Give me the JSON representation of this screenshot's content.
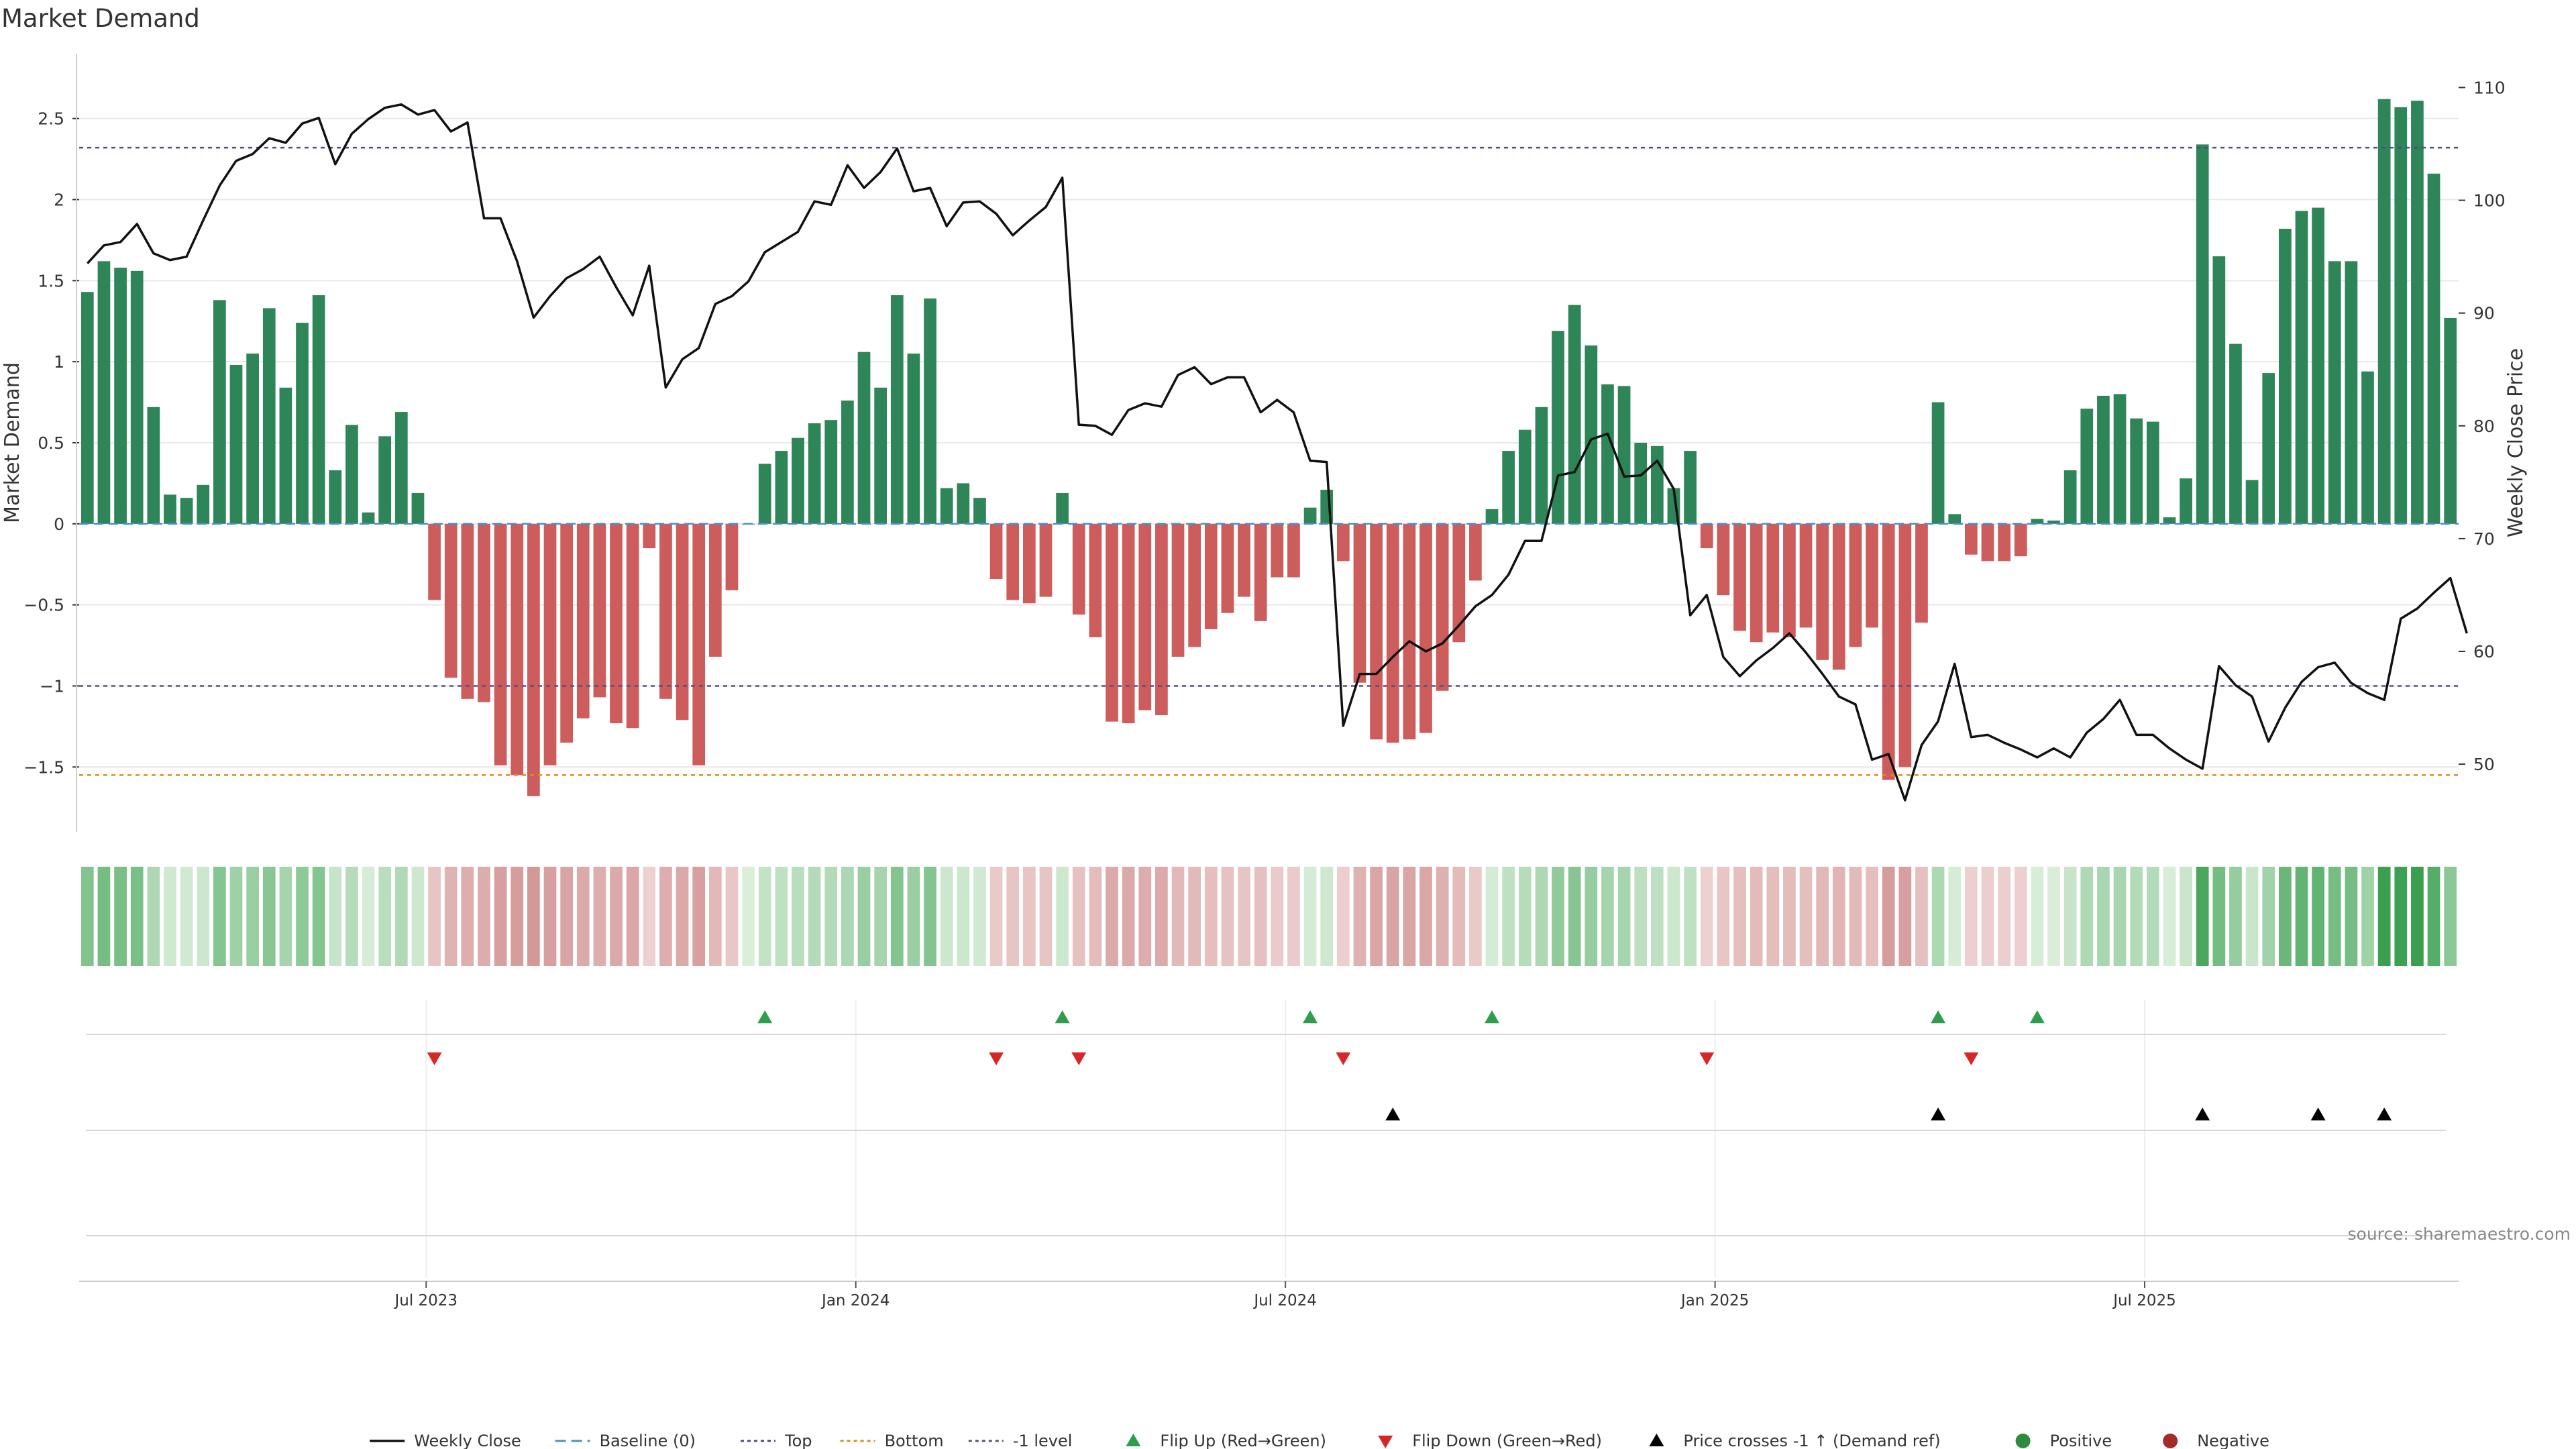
{
  "chart_data": {
    "type": "bar",
    "title": "Market Demand",
    "ylabel": "Market Demand",
    "y2label": "Weekly Close Price",
    "ylim": [
      -1.9,
      2.9
    ],
    "y2lim": [
      44,
      113
    ],
    "yticks": [
      {
        "value": 2.5,
        "label": "2.5"
      },
      {
        "value": 2,
        "label": "2"
      },
      {
        "value": 1.5,
        "label": "1.5"
      },
      {
        "value": 1,
        "label": "1"
      },
      {
        "value": 0.5,
        "label": "0.5"
      },
      {
        "value": 0,
        "label": "0"
      },
      {
        "value": -0.5,
        "label": "−0.5"
      },
      {
        "value": -1,
        "label": "−1"
      },
      {
        "value": -1.5,
        "label": "−1.5"
      }
    ],
    "y2ticks": [
      {
        "value": 110,
        "label": "110"
      },
      {
        "value": 100,
        "label": "100"
      },
      {
        "value": 90,
        "label": "90"
      },
      {
        "value": 80,
        "label": "80"
      },
      {
        "value": 70,
        "label": "70"
      },
      {
        "value": 60,
        "label": "60"
      },
      {
        "value": 50,
        "label": "50"
      }
    ],
    "reference_lines": {
      "top": 2.32,
      "bottom": -1.55,
      "minus_one": -1,
      "baseline": 0
    },
    "x_ticks": [
      {
        "index": 21,
        "label": "Jul 2023"
      },
      {
        "index": 47,
        "label": "Jan 2024"
      },
      {
        "index": 73,
        "label": "Jul 2024"
      },
      {
        "index": 99,
        "label": "Jan 2025"
      },
      {
        "index": 125,
        "label": "Jul 2025"
      }
    ],
    "demand": [
      1.43,
      1.62,
      1.58,
      1.56,
      0.72,
      0.18,
      0.16,
      0.24,
      1.38,
      0.98,
      1.05,
      1.33,
      0.84,
      1.24,
      1.41,
      0.33,
      0.61,
      0.07,
      0.54,
      0.69,
      0.19,
      -0.47,
      -0.95,
      -1.08,
      -1.1,
      -1.49,
      -1.55,
      -1.68,
      -1.49,
      -1.35,
      -1.2,
      -1.07,
      -1.23,
      -1.26,
      -0.15,
      -1.08,
      -1.21,
      -1.49,
      -0.82,
      -0.41,
      0.0,
      0.37,
      0.45,
      0.53,
      0.62,
      0.64,
      0.76,
      1.06,
      0.84,
      1.41,
      1.05,
      1.39,
      0.22,
      0.25,
      0.16,
      -0.34,
      -0.47,
      -0.49,
      -0.45,
      0.19,
      -0.56,
      -0.7,
      -1.22,
      -1.23,
      -1.15,
      -1.18,
      -0.82,
      -0.76,
      -0.65,
      -0.55,
      -0.45,
      -0.6,
      -0.33,
      -0.33,
      0.1,
      0.21,
      -0.23,
      -0.98,
      -1.33,
      -1.35,
      -1.33,
      -1.29,
      -1.03,
      -0.73,
      -0.35,
      0.09,
      0.45,
      0.58,
      0.72,
      1.19,
      1.35,
      1.1,
      0.86,
      0.85,
      0.5,
      0.48,
      0.22,
      0.45,
      -0.15,
      -0.44,
      -0.66,
      -0.73,
      -0.67,
      -0.7,
      -0.64,
      -0.84,
      -0.9,
      -0.76,
      -0.64,
      -1.58,
      -1.5,
      -0.61,
      0.75,
      0.06,
      -0.19,
      -0.23,
      -0.23,
      -0.2,
      0.03,
      0.02,
      0.33,
      0.71,
      0.79,
      0.8,
      0.65,
      0.63,
      0.04,
      0.28,
      2.34,
      1.65,
      1.11,
      0.27,
      0.93,
      1.82,
      1.93,
      1.95,
      1.62,
      1.62,
      0.94,
      2.62,
      2.57,
      2.61,
      2.16,
      1.27
    ],
    "price": [
      94.4,
      96.0,
      96.3,
      97.9,
      95.3,
      94.7,
      95.0,
      98.2,
      101.3,
      103.5,
      104.1,
      105.5,
      105.1,
      106.8,
      107.3,
      103.2,
      105.9,
      107.2,
      108.2,
      108.5,
      107.6,
      108.0,
      106.1,
      106.9,
      98.4,
      98.4,
      94.6,
      89.6,
      91.5,
      93.1,
      93.9,
      95.0,
      92.3,
      89.8,
      94.2,
      83.4,
      85.9,
      86.9,
      90.8,
      91.5,
      92.8,
      95.4,
      96.3,
      97.2,
      99.9,
      99.6,
      103.1,
      101.1,
      102.5,
      104.6,
      100.8,
      101.1,
      97.7,
      99.8,
      99.9,
      98.8,
      96.9,
      98.2,
      99.4,
      102.0,
      80.1,
      80.0,
      79.2,
      81.4,
      82.0,
      81.7,
      84.5,
      85.2,
      83.7,
      84.3,
      84.3,
      81.2,
      82.3,
      81.2,
      76.9,
      76.8,
      53.4,
      58.0,
      58.0,
      59.5,
      60.9,
      60.0,
      60.7,
      62.3,
      64.0,
      65.0,
      66.8,
      69.8,
      69.8,
      75.6,
      75.9,
      78.8,
      79.3,
      75.5,
      75.6,
      76.9,
      74.4,
      63.2,
      65.0,
      59.5,
      57.8,
      59.2,
      60.3,
      61.6,
      59.9,
      58.0,
      56.0,
      55.3,
      50.4,
      50.9,
      46.8,
      51.7,
      53.8,
      58.9,
      52.4,
      52.6,
      51.9,
      51.3,
      50.6,
      51.4,
      50.6,
      52.8,
      54.0,
      55.7,
      52.6,
      52.6,
      51.4,
      50.4,
      49.6,
      58.7,
      57.0,
      56.0,
      52.0,
      55.0,
      57.3,
      58.6,
      59.0,
      57.2,
      56.3,
      55.7,
      62.9,
      63.8,
      65.2,
      66.5,
      61.6
    ],
    "flip_up_indices": [
      41,
      59,
      74,
      85,
      112,
      118
    ],
    "flip_down_indices": [
      21,
      55,
      60,
      76,
      98,
      114
    ],
    "price_cross_indices": [
      79,
      112,
      128,
      135,
      139
    ],
    "legend": [
      {
        "label": "Weekly Close",
        "kind": "line",
        "color": "#111111"
      },
      {
        "label": "Baseline (0)",
        "kind": "dash",
        "color": "#4a90c8"
      },
      {
        "label": "Top",
        "kind": "dot",
        "color": "#4a4a9a"
      },
      {
        "label": "Bottom",
        "kind": "dot",
        "color": "#e08a1e"
      },
      {
        "label": "-1 level",
        "kind": "dot",
        "color": "#555577"
      },
      {
        "label": "Flip Up (Red→Green)",
        "kind": "tri-up",
        "color": "#2e9e4e"
      },
      {
        "label": "Flip Down (Green→Red)",
        "kind": "tri-down",
        "color": "#d62728"
      },
      {
        "label": "Price crosses -1 ↑ (Demand ref)",
        "kind": "tri-up",
        "color": "#000000"
      },
      {
        "label": "Positive",
        "kind": "dot-marker",
        "color": "#2e8b3e"
      },
      {
        "label": "Negative",
        "kind": "dot-marker",
        "color": "#a52a2a"
      }
    ],
    "source": "source: sharemaestro.com"
  },
  "colors": {
    "positive": "#2e8558",
    "negative": "#cd5c5c",
    "price": "#111111",
    "grid": "#e8e8e8"
  }
}
